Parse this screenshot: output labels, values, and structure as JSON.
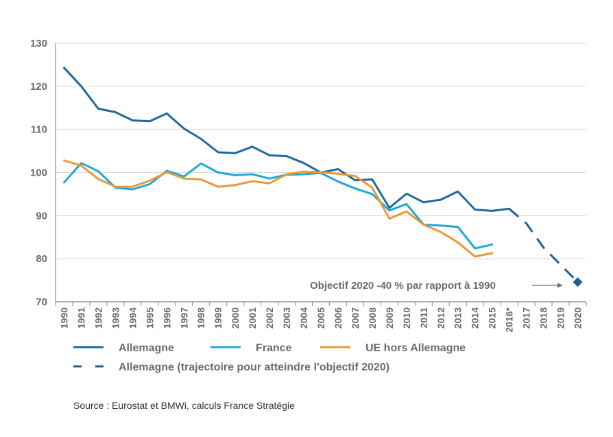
{
  "chart_data": {
    "type": "line",
    "title": "",
    "xlabel": "",
    "ylabel": "",
    "ylim": [
      70,
      130
    ],
    "yticks": [
      70,
      80,
      90,
      100,
      110,
      120,
      130
    ],
    "grid": true,
    "categories": [
      "1990",
      "1991",
      "1992",
      "1993",
      "1994",
      "1995",
      "1996",
      "1997",
      "1998",
      "1999",
      "2000",
      "2001",
      "2002",
      "2003",
      "2004",
      "2005",
      "2006",
      "2007",
      "2008",
      "2009",
      "2010",
      "2011",
      "2012",
      "2013",
      "2014",
      "2015",
      "2016*",
      "2017",
      "2018",
      "2019",
      "2020"
    ],
    "series": [
      {
        "name": "Allemagne",
        "color": "#1f6a9a",
        "style": "solid",
        "values": [
          124.3,
          120.0,
          114.8,
          114.0,
          112.1,
          111.9,
          113.7,
          110.2,
          107.8,
          104.7,
          104.5,
          106.0,
          104.0,
          103.8,
          102.2,
          100.0,
          100.8,
          98.2,
          98.4,
          91.8,
          95.1,
          93.1,
          93.7,
          95.6,
          91.4,
          91.1,
          91.6,
          null,
          null,
          null,
          null
        ]
      },
      {
        "name": "France",
        "color": "#1ea8d8",
        "style": "solid",
        "values": [
          97.7,
          102.2,
          100.3,
          96.5,
          96.1,
          97.3,
          100.4,
          99.1,
          102.1,
          100.0,
          99.4,
          99.6,
          98.6,
          99.5,
          99.6,
          99.9,
          97.9,
          96.3,
          95.0,
          91.2,
          92.7,
          87.9,
          87.7,
          87.4,
          82.4,
          83.3,
          null,
          null,
          null,
          null,
          null
        ]
      },
      {
        "name": "UE hors Allemagne",
        "color": "#e99a37",
        "style": "solid",
        "values": [
          102.8,
          101.6,
          98.5,
          96.7,
          96.7,
          98.1,
          100.1,
          98.6,
          98.4,
          96.7,
          97.1,
          98.0,
          97.5,
          99.6,
          100.2,
          100.1,
          99.7,
          99.2,
          96.5,
          89.3,
          91.0,
          87.9,
          86.2,
          83.8,
          80.5,
          81.3,
          null,
          null,
          null,
          null,
          null
        ]
      },
      {
        "name": "Allemagne (trajectoire pour atteindre l'objectif 2020)",
        "color": "#1f5f92",
        "style": "dashed",
        "values": [
          null,
          null,
          null,
          null,
          null,
          null,
          null,
          null,
          null,
          null,
          null,
          null,
          null,
          null,
          null,
          null,
          null,
          null,
          null,
          null,
          null,
          null,
          null,
          null,
          null,
          null,
          91.6,
          88.2,
          82.6,
          78.6,
          74.6
        ]
      }
    ],
    "target_point": {
      "category": "2020",
      "value": 74.6,
      "color": "#1f5f92"
    },
    "annotation": "Objectif 2020 -40 % par rapport à 1990"
  },
  "legend": {
    "items": [
      {
        "label": "Allemagne",
        "color": "#1f6a9a",
        "style": "solid"
      },
      {
        "label": "France",
        "color": "#1ea8d8",
        "style": "solid"
      },
      {
        "label": "UE hors Allemagne",
        "color": "#e99a37",
        "style": "solid"
      },
      {
        "label": "Allemagne (trajectoire pour atteindre l'objectif 2020)",
        "color": "#1f5f92",
        "style": "dashed"
      }
    ]
  },
  "source": "Source : Eurostat et BMWi, calculs France Stratégie"
}
